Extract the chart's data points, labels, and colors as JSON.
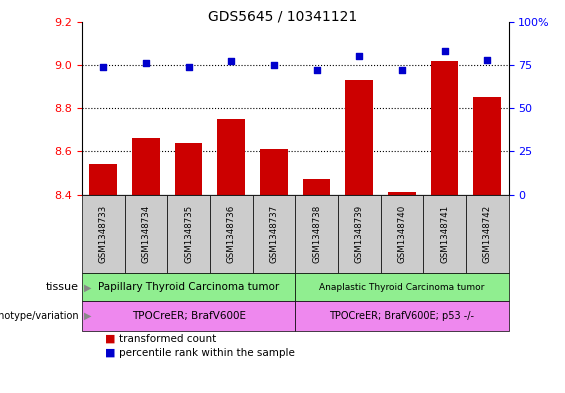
{
  "title": "GDS5645 / 10341121",
  "samples": [
    "GSM1348733",
    "GSM1348734",
    "GSM1348735",
    "GSM1348736",
    "GSM1348737",
    "GSM1348738",
    "GSM1348739",
    "GSM1348740",
    "GSM1348741",
    "GSM1348742"
  ],
  "transformed_count": [
    8.54,
    8.66,
    8.64,
    8.75,
    8.61,
    8.47,
    8.93,
    8.41,
    9.02,
    8.85
  ],
  "percentile_rank": [
    74,
    76,
    74,
    77,
    75,
    72,
    80,
    72,
    83,
    78
  ],
  "ylim_left": [
    8.4,
    9.2
  ],
  "ylim_right": [
    0,
    100
  ],
  "yticks_left": [
    8.4,
    8.6,
    8.8,
    9.0,
    9.2
  ],
  "yticks_right": [
    0,
    25,
    50,
    75,
    100
  ],
  "bar_color": "#cc0000",
  "dot_color": "#0000cc",
  "tissue_labels": [
    "Papillary Thyroid Carcinoma tumor",
    "Anaplastic Thyroid Carcinoma tumor"
  ],
  "tissue_color": "#90ee90",
  "tissue_split": 5,
  "genotype_labels": [
    "TPOCreER; BrafV600E",
    "TPOCreER; BrafV600E; p53 -/-"
  ],
  "genotype_color": "#ee88ee",
  "sample_box_color": "#cccccc",
  "legend_red": "transformed count",
  "legend_blue": "percentile rank within the sample",
  "grid_lines": [
    8.6,
    8.8,
    9.0
  ],
  "dotted_line_y": 9.0
}
